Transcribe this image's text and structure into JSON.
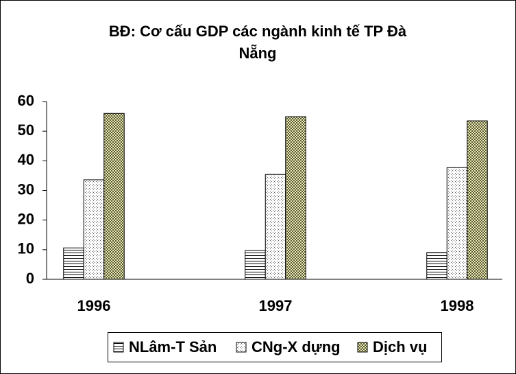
{
  "chart_data": {
    "type": "bar",
    "title": "BĐ: Cơ cấu GDP các ngành kinh tế TP Đà Nẵng",
    "categories": [
      "1996",
      "1997",
      "1998"
    ],
    "series": [
      {
        "name": "NLâm-T Sản",
        "color": "#ffffff",
        "values": [
          10.6,
          9.7,
          9.0
        ]
      },
      {
        "name": "CNg-X dựng",
        "color": "#ffffff",
        "values": [
          33.6,
          35.4,
          37.7
        ]
      },
      {
        "name": "Dịch vụ",
        "color": "#5a5a2a",
        "values": [
          56.0,
          54.9,
          53.5
        ]
      }
    ],
    "ylim": [
      0,
      60
    ],
    "yticks": [
      0,
      10,
      20,
      30,
      40,
      50,
      60
    ],
    "grid": false,
    "legend": "bottom"
  }
}
